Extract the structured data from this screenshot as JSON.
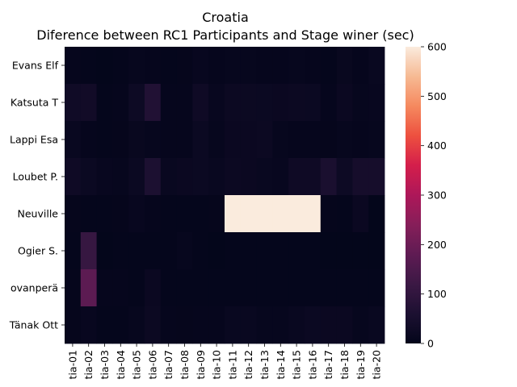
{
  "chart_data": {
    "type": "heatmap",
    "title": "Croatia",
    "subtitle": "Diference between RC1 Participants and Stage winer (sec)",
    "xlabel": "",
    "ylabel": "",
    "x_categories": [
      "tia-01",
      "tia-02",
      "tia-03",
      "tia-04",
      "tia-05",
      "tia-06",
      "tia-07",
      "tia-08",
      "tia-09",
      "tia-10",
      "tia-11",
      "tia-12",
      "tia-13",
      "tia-14",
      "tia-15",
      "tia-16",
      "tia-17",
      "tia-18",
      "tia-19",
      "tia-20"
    ],
    "y_categories": [
      "Evans  Elf",
      "Katsuta  T",
      "Lappi  Esa",
      "Loubet  P.",
      "Neuville  ",
      "Ogier  S.",
      "ovanperä ",
      "Tänak  Ott"
    ],
    "values": [
      [
        8,
        5,
        3,
        4,
        10,
        7,
        5,
        6,
        12,
        8,
        10,
        10,
        8,
        8,
        10,
        8,
        5,
        14,
        8,
        15
      ],
      [
        30,
        35,
        5,
        8,
        25,
        70,
        8,
        8,
        28,
        12,
        22,
        22,
        20,
        18,
        22,
        20,
        8,
        18,
        10,
        12
      ],
      [
        15,
        8,
        5,
        6,
        14,
        10,
        8,
        8,
        20,
        10,
        18,
        18,
        22,
        10,
        8,
        8,
        6,
        10,
        8,
        10
      ],
      [
        28,
        20,
        12,
        10,
        20,
        60,
        15,
        18,
        20,
        15,
        22,
        18,
        15,
        12,
        28,
        28,
        55,
        25,
        45,
        45
      ],
      [
        6,
        5,
        4,
        6,
        12,
        8,
        5,
        5,
        5,
        6,
        600,
        600,
        600,
        600,
        600,
        600,
        6,
        4,
        18,
        3
      ],
      [
        4,
        110,
        3,
        5,
        4,
        5,
        5,
        10,
        4,
        3,
        4,
        4,
        4,
        4,
        4,
        4,
        3,
        3,
        3,
        3
      ],
      [
        6,
        175,
        8,
        8,
        5,
        18,
        5,
        4,
        4,
        4,
        4,
        4,
        4,
        4,
        4,
        4,
        4,
        4,
        4,
        4
      ],
      [
        6,
        12,
        5,
        5,
        10,
        22,
        8,
        6,
        8,
        8,
        15,
        15,
        10,
        10,
        15,
        20,
        18,
        18,
        10,
        15
      ]
    ],
    "colorbar": {
      "colormap": "rocket",
      "vmin": 0,
      "vmax": 600,
      "ticks": [
        0,
        100,
        200,
        300,
        400,
        500,
        600
      ]
    },
    "grid": false
  }
}
